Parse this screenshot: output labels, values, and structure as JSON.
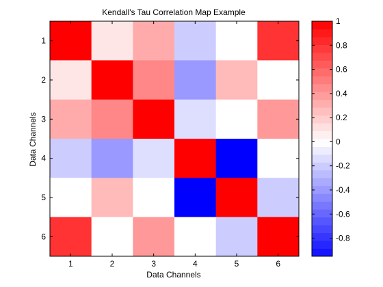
{
  "chart_data": {
    "type": "heatmap",
    "title": "Kendall's Tau Correlation Map Example",
    "xlabel": "Data Channels",
    "ylabel": "Data Channels",
    "x_ticks": [
      "1",
      "2",
      "3",
      "4",
      "5",
      "6"
    ],
    "y_ticks": [
      "1",
      "2",
      "3",
      "4",
      "5",
      "6"
    ],
    "values": [
      [
        1.0,
        0.1,
        0.33,
        -0.2,
        0.0,
        0.8
      ],
      [
        0.1,
        1.0,
        0.47,
        -0.4,
        0.27,
        0.0
      ],
      [
        0.33,
        0.47,
        1.0,
        -0.13,
        0.0,
        0.4
      ],
      [
        -0.2,
        -0.4,
        -0.13,
        1.0,
        -1.0,
        0.0
      ],
      [
        0.0,
        0.27,
        0.0,
        -1.0,
        1.0,
        -0.2
      ],
      [
        0.8,
        0.0,
        0.4,
        0.0,
        -0.2,
        1.0
      ]
    ],
    "colorbar": {
      "min": -0.95,
      "max": 1.0,
      "levels": 30,
      "ticks": [
        "-0.8",
        "-0.6",
        "-0.4",
        "-0.2",
        "0",
        "0.2",
        "0.4",
        "0.6",
        "0.8",
        "1"
      ],
      "tick_values": [
        -0.8,
        -0.6,
        -0.4,
        -0.2,
        0,
        0.2,
        0.4,
        0.6,
        0.8,
        1.0
      ],
      "position": "right"
    },
    "colors": {
      "negative": "#0000ff",
      "zero": "#ffffff",
      "positive": "#ff0000"
    },
    "grid": false
  }
}
